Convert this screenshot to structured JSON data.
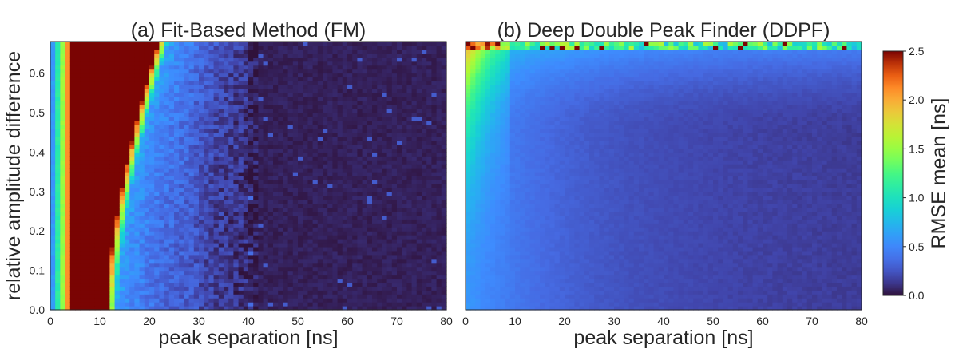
{
  "chart_data": [
    {
      "type": "heatmap",
      "panel": "a",
      "title": "(a) Fit-Based Method (FM)",
      "xlabel": "peak separation [ns]",
      "ylabel": "relative amplitude difference",
      "xlim": [
        0,
        80
      ],
      "ylim": [
        0,
        0.68
      ],
      "xticks": [
        "0",
        "10",
        "20",
        "30",
        "40",
        "50",
        "60",
        "70",
        "80"
      ],
      "yticks": [
        "0.0",
        "0.1",
        "0.2",
        "0.3",
        "0.4",
        "0.5",
        "0.6"
      ],
      "x_bin_width_ns": 1,
      "y_bin_width": 0.01,
      "description_of_values": {
        "sep_0_1": 0.6,
        "sep_1_2": 1.1,
        "sep_2_3": 1.5,
        "sep_3_4": 2.1,
        "sep_4_to_boundary": 2.5,
        "boundary_sep_at_diff_0": 11.5,
        "boundary_sep_at_diff_0.68": 22,
        "background_far": 0.05
      }
    },
    {
      "type": "heatmap",
      "panel": "b",
      "title": "(b) Deep Double Peak Finder (DDPF)",
      "xlabel": "peak separation [ns]",
      "ylabel": "",
      "xlim": [
        0,
        80
      ],
      "ylim": [
        0,
        0.68
      ],
      "xticks": [
        "0",
        "10",
        "20",
        "30",
        "40",
        "50",
        "60",
        "70",
        "80"
      ],
      "x_bin_width_ns": 1,
      "y_bin_width": 0.01,
      "description_of_values": {
        "sep_0_to_3": 0.5,
        "near_origin_top": 1.5,
        "top_edge_peak": 2.5,
        "background_far": 0.12
      }
    }
  ],
  "colorbar": {
    "label": "RMSE mean [ns]",
    "colormap": "turbo",
    "vmin": 0.0,
    "vmax": 2.5,
    "ticks": [
      "0.0",
      "0.5",
      "1.0",
      "1.5",
      "2.0",
      "2.5"
    ]
  }
}
